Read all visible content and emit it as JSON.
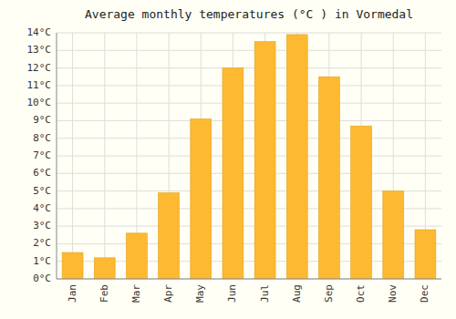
{
  "chart_data": {
    "type": "bar",
    "title": "Average monthly temperatures (°C ) in Vormedal",
    "categories": [
      "Jan",
      "Feb",
      "Mar",
      "Apr",
      "May",
      "Jun",
      "Jul",
      "Aug",
      "Sep",
      "Oct",
      "Nov",
      "Dec"
    ],
    "values": [
      1.5,
      1.2,
      2.6,
      4.9,
      9.1,
      12.0,
      13.5,
      13.9,
      11.5,
      8.7,
      5.0,
      2.8
    ],
    "color": "#FDB931",
    "ylim": [
      0,
      14
    ],
    "yticks": [
      {
        "value": 0,
        "label": "0°C"
      },
      {
        "value": 1,
        "label": "1°C"
      },
      {
        "value": 2,
        "label": "2°C"
      },
      {
        "value": 3,
        "label": "3°C"
      },
      {
        "value": 4,
        "label": "4°C"
      },
      {
        "value": 5,
        "label": "5°C"
      },
      {
        "value": 6,
        "label": "6°C"
      },
      {
        "value": 7,
        "label": "7°C"
      },
      {
        "value": 8,
        "label": "8°C"
      },
      {
        "value": 9,
        "label": "9°C"
      },
      {
        "value": 10,
        "label": "10°C"
      },
      {
        "value": 11,
        "label": "11°C"
      },
      {
        "value": 12,
        "label": "12°C"
      },
      {
        "value": 13,
        "label": "13°C"
      },
      {
        "value": 14,
        "label": "14°C"
      }
    ],
    "grid": true
  }
}
